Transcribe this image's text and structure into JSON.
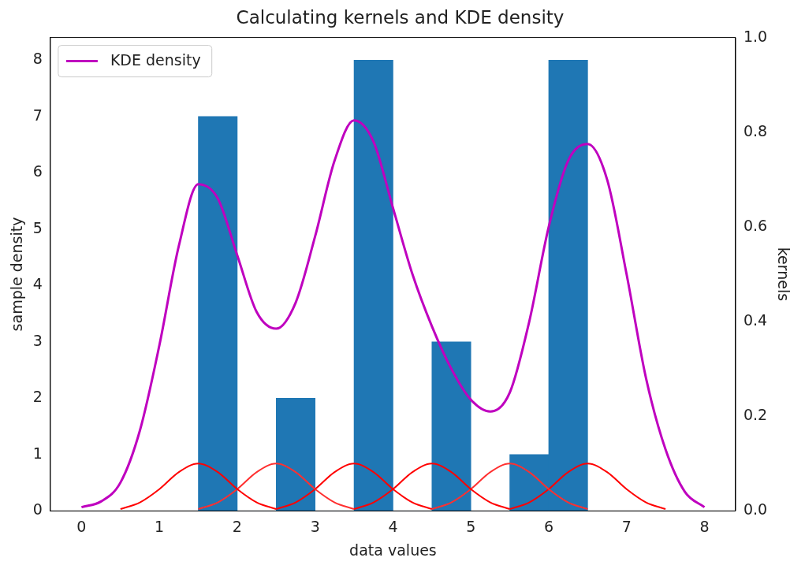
{
  "chart_data": {
    "type": "histogram",
    "title": "Calculating kernels and KDE density",
    "xlabel": "data values",
    "ylabel": "sample density",
    "y2label": "kernels",
    "bins": [
      1.5,
      2,
      2.5,
      3,
      3.5,
      4,
      4.5,
      5,
      5.5,
      6,
      6.5
    ],
    "values": [
      7,
      0,
      2,
      0,
      8,
      0,
      3,
      0,
      1,
      8
    ],
    "color": "#1f77b4",
    "xlim": [
      -0.4,
      8.4
    ],
    "xticks": [
      0,
      1,
      2,
      3,
      4,
      5,
      6,
      7,
      8
    ],
    "ylim": [
      0,
      8.4
    ],
    "yticks": [
      0,
      1,
      2,
      3,
      4,
      5,
      6,
      7,
      8
    ],
    "y2lim": [
      0,
      1
    ],
    "y2ticks": [
      {
        "value": 0,
        "label": "0.0"
      },
      {
        "value": 0.2,
        "label": "0.2"
      },
      {
        "value": 0.4,
        "label": "0.4"
      },
      {
        "value": 0.6,
        "label": "0.6"
      },
      {
        "value": 0.8,
        "label": "0.8"
      },
      {
        "value": 1,
        "label": "1.0"
      }
    ],
    "legend": "top left",
    "grid": false,
    "series": [
      {
        "type": "line",
        "axis": "y2",
        "name": "KDE density",
        "color": "#bf00bf",
        "x": [
          0,
          0.25,
          0.5,
          0.75,
          1,
          1.25,
          1.5,
          1.75,
          2,
          2.25,
          2.5,
          2.75,
          3,
          3.25,
          3.5,
          3.75,
          4,
          4.25,
          4.5,
          4.75,
          5,
          5.25,
          5.5,
          5.75,
          6,
          6.25,
          6.5,
          6.75,
          7,
          7.25,
          7.5,
          7.75,
          8
        ],
        "values": [
          0.008,
          0.02,
          0.06,
          0.17,
          0.35,
          0.56,
          0.69,
          0.66,
          0.54,
          0.42,
          0.385,
          0.44,
          0.58,
          0.74,
          0.825,
          0.78,
          0.64,
          0.5,
          0.39,
          0.3,
          0.235,
          0.21,
          0.25,
          0.4,
          0.6,
          0.74,
          0.775,
          0.7,
          0.5,
          0.28,
          0.13,
          0.04,
          0.008
        ]
      },
      {
        "type": "line",
        "axis": "y2",
        "color": "#ff0000",
        "x": [
          0.5,
          0.75,
          1,
          1.25,
          1.5,
          1.75,
          2,
          2.25,
          2.5
        ],
        "values": [
          0.004,
          0.018,
          0.046,
          0.082,
          0.1,
          0.082,
          0.046,
          0.018,
          0.004
        ]
      },
      {
        "type": "line",
        "axis": "y2",
        "color": "#ff3030",
        "x": [
          1.5,
          1.75,
          2,
          2.25,
          2.5,
          2.75,
          3,
          3.25,
          3.5
        ],
        "values": [
          0.004,
          0.018,
          0.046,
          0.082,
          0.1,
          0.082,
          0.046,
          0.018,
          0.004
        ]
      },
      {
        "type": "line",
        "axis": "y2",
        "color": "#ff0000",
        "x": [
          2.5,
          2.75,
          3,
          3.25,
          3.5,
          3.75,
          4,
          4.25,
          4.5
        ],
        "values": [
          0.004,
          0.018,
          0.046,
          0.082,
          0.1,
          0.082,
          0.046,
          0.018,
          0.004
        ]
      },
      {
        "type": "line",
        "axis": "y2",
        "color": "#ff0000",
        "x": [
          3.5,
          3.75,
          4,
          4.25,
          4.5,
          4.75,
          5,
          5.25,
          5.5
        ],
        "values": [
          0.004,
          0.018,
          0.046,
          0.082,
          0.1,
          0.082,
          0.046,
          0.018,
          0.004
        ]
      },
      {
        "type": "line",
        "axis": "y2",
        "color": "#ff3030",
        "x": [
          4.5,
          4.75,
          5,
          5.25,
          5.5,
          5.75,
          6,
          6.25,
          6.5
        ],
        "values": [
          0.004,
          0.018,
          0.046,
          0.082,
          0.1,
          0.082,
          0.046,
          0.018,
          0.004
        ]
      },
      {
        "type": "line",
        "axis": "y2",
        "color": "#ff0000",
        "x": [
          5.5,
          5.75,
          6,
          6.25,
          6.5,
          6.75,
          7,
          7.25,
          7.5
        ],
        "values": [
          0.004,
          0.018,
          0.046,
          0.082,
          0.1,
          0.082,
          0.046,
          0.018,
          0.004
        ]
      }
    ]
  }
}
